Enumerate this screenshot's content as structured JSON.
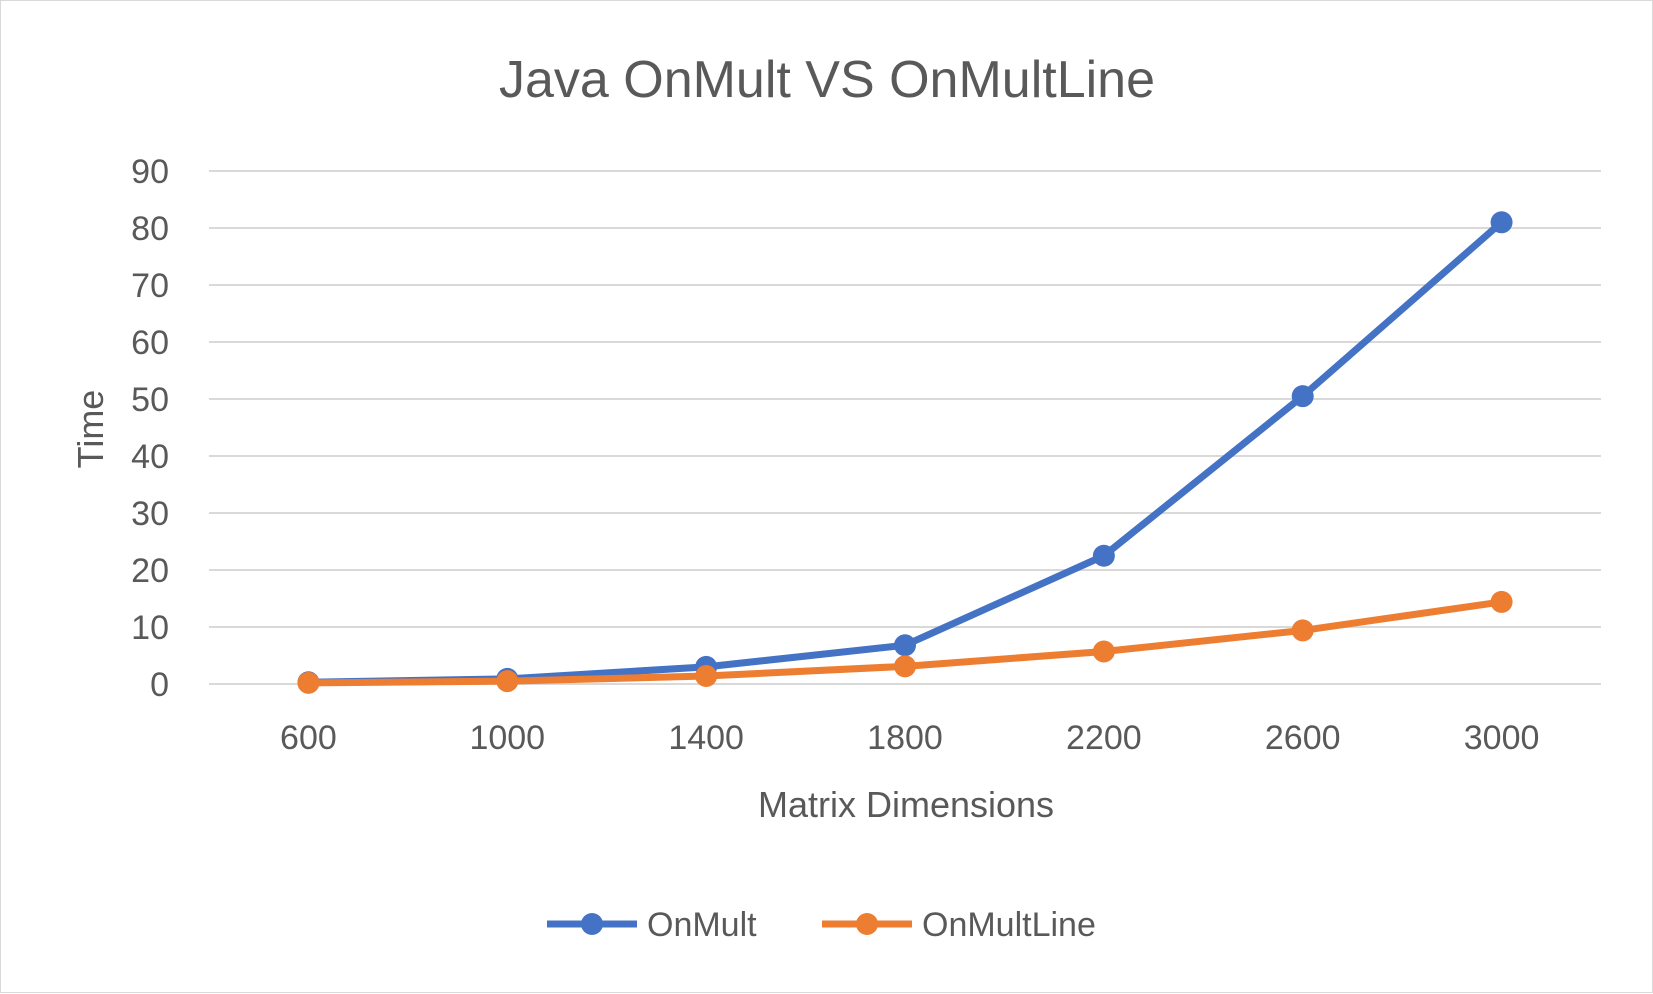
{
  "chart_data": {
    "type": "line",
    "title": "Java OnMult VS OnMultLine",
    "xlabel": "Matrix Dimensions",
    "ylabel": "Time",
    "categories": [
      "600",
      "1000",
      "1400",
      "1800",
      "2200",
      "2600",
      "3000"
    ],
    "ylim": [
      0,
      90
    ],
    "yticks": [
      "0",
      "10",
      "20",
      "30",
      "40",
      "50",
      "60",
      "70",
      "80",
      "90"
    ],
    "grid": true,
    "legend_position": "bottom",
    "series": [
      {
        "name": "OnMult",
        "color": "#4472C4",
        "values": [
          0.3,
          0.9,
          3.0,
          6.8,
          22.5,
          50.5,
          81.0
        ]
      },
      {
        "name": "OnMultLine",
        "color": "#ED7D31",
        "values": [
          0.2,
          0.5,
          1.4,
          3.1,
          5.7,
          9.4,
          14.4
        ]
      }
    ]
  }
}
